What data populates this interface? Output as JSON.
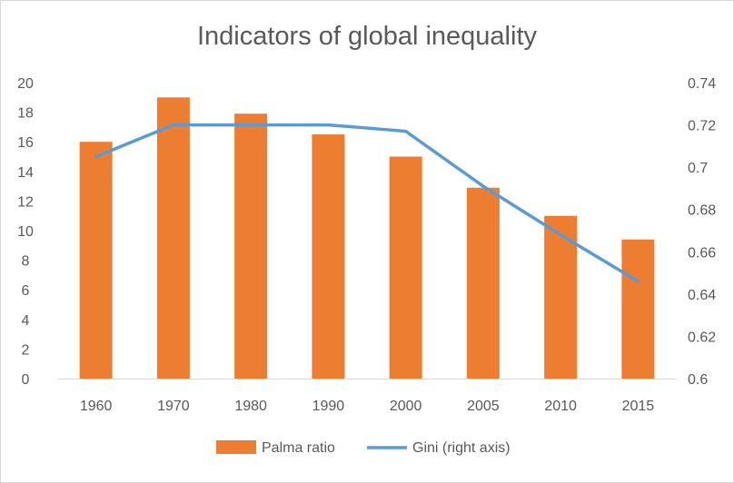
{
  "chart_data": {
    "type": "bar",
    "title": "Indicators of global inequality",
    "categories": [
      "1960",
      "1970",
      "1980",
      "1990",
      "2000",
      "2005",
      "2010",
      "2015"
    ],
    "series": [
      {
        "name": "Palma ratio",
        "type": "bar",
        "axis": "left",
        "values": [
          16.0,
          19.0,
          17.9,
          16.5,
          15.0,
          12.9,
          11.0,
          9.4
        ],
        "color": "#ED7D31"
      },
      {
        "name": "Gini (right axis)",
        "type": "line",
        "axis": "right",
        "values": [
          0.705,
          0.72,
          0.72,
          0.72,
          0.717,
          0.691,
          0.668,
          0.646
        ],
        "color": "#5B9BD5"
      }
    ],
    "y_left": {
      "ylim": [
        0,
        20
      ],
      "ticks": [
        "0",
        "2",
        "4",
        "6",
        "8",
        "10",
        "12",
        "14",
        "16",
        "18",
        "20"
      ]
    },
    "y_right": {
      "ylim": [
        0.6,
        0.74
      ],
      "ticks": [
        "0.6",
        "0.62",
        "0.64",
        "0.66",
        "0.68",
        "0.7",
        "0.72",
        "0.74"
      ]
    },
    "grid": false,
    "legend_position": "bottom"
  }
}
